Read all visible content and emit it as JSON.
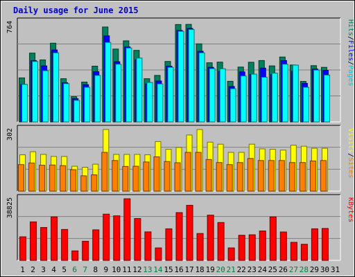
{
  "chart_data": {
    "title": "Daily usage for June 2015",
    "type": "bar",
    "days": [
      1,
      2,
      3,
      4,
      5,
      6,
      7,
      8,
      9,
      10,
      11,
      12,
      13,
      14,
      15,
      16,
      17,
      18,
      19,
      20,
      21,
      22,
      23,
      24,
      25,
      26,
      27,
      28,
      29,
      30,
      31
    ],
    "weekend_days": [
      6,
      7,
      13,
      14,
      20,
      21,
      27,
      28
    ],
    "colors": {
      "background": "#c0c0c0",
      "hits": "#00805c",
      "files": "#0000ff",
      "pages": "#00ffff",
      "visits": "#ffff00",
      "sites": "#ff8000",
      "kbytes": "#ff0000",
      "weekday_label": "#000000",
      "weekend_label": "#008040"
    },
    "panels": [
      {
        "id": "hits_files_pages",
        "ymax_label": "764",
        "ymax": 764,
        "right_labels": [
          "Pages",
          "Files",
          "Hits"
        ],
        "right_colors": [
          "#00cccc",
          "#0000ff",
          "#00805c"
        ],
        "series": [
          {
            "name": "Hits",
            "color": "#00805c",
            "values": [
              337,
              527,
              475,
              603,
              331,
              193,
              305,
              427,
              727,
              558,
              621,
              548,
              331,
              356,
              463,
              746,
              747,
              598,
              453,
              458,
              311,
              420,
              457,
              470,
              429,
              497,
              436,
              310,
              431,
              418,
              0
            ]
          },
          {
            "name": "Files",
            "color": "#0000ff",
            "values": [
              287,
              470,
              429,
              551,
              300,
              178,
              285,
              385,
              659,
              461,
              574,
              476,
              291,
              313,
              427,
              701,
              716,
              541,
              418,
              387,
              271,
              383,
              363,
              412,
              362,
              470,
              389,
              295,
              405,
              395,
              0
            ]
          },
          {
            "name": "Pages",
            "color": "#00ffff",
            "values": [
              287,
              463,
              392,
              529,
              293,
              165,
              265,
              356,
              609,
              442,
              566,
              489,
              302,
              291,
              418,
              694,
              708,
              529,
              408,
              407,
              254,
              352,
              366,
              342,
              373,
              442,
              435,
              265,
              397,
              359,
              0
            ]
          }
        ]
      },
      {
        "id": "visits_sites",
        "ymax_label": "302",
        "ymax": 302,
        "right_labels": [
          "Sites",
          "Visits"
        ],
        "right_colors": [
          "#ff8000",
          "#ffff00"
        ],
        "series": [
          {
            "name": "Visits",
            "color": "#ffff00",
            "values": [
              178,
              193,
              180,
              170,
              170,
              122,
              117,
              132,
              302,
              180,
              180,
              180,
              178,
              243,
              205,
              214,
              275,
              302,
              240,
              230,
              190,
              190,
              230,
              207,
              205,
              201,
              225,
              220,
              210,
              210,
              0
            ]
          },
          {
            "name": "Sites",
            "color": "#ff8000",
            "values": [
              130,
              138,
              127,
              128,
              125,
              105,
              75,
              80,
              190,
              150,
              121,
              122,
              143,
              168,
              145,
              139,
              190,
              190,
              155,
              140,
              130,
              140,
              160,
              150,
              150,
              150,
              140,
              140,
              148,
              150,
              0
            ]
          }
        ]
      },
      {
        "id": "kbytes",
        "ymax_label": "38825",
        "ymax": 38825,
        "right_labels": [
          "KBytes"
        ],
        "right_colors": [
          "#ff0000"
        ],
        "series": [
          {
            "name": "KBytes",
            "color": "#ff0000",
            "values": [
              14840,
              24260,
              20730,
              27410,
              19480,
              5980,
              12040,
              19250,
              29130,
              28070,
              38825,
              26380,
              17960,
              7860,
              19880,
              30110,
              34710,
              16940,
              28510,
              23860,
              7860,
              15830,
              16120,
              18530,
              27410,
              17890,
              11370,
              10150,
              19900,
              20120,
              0
            ]
          }
        ]
      }
    ]
  }
}
